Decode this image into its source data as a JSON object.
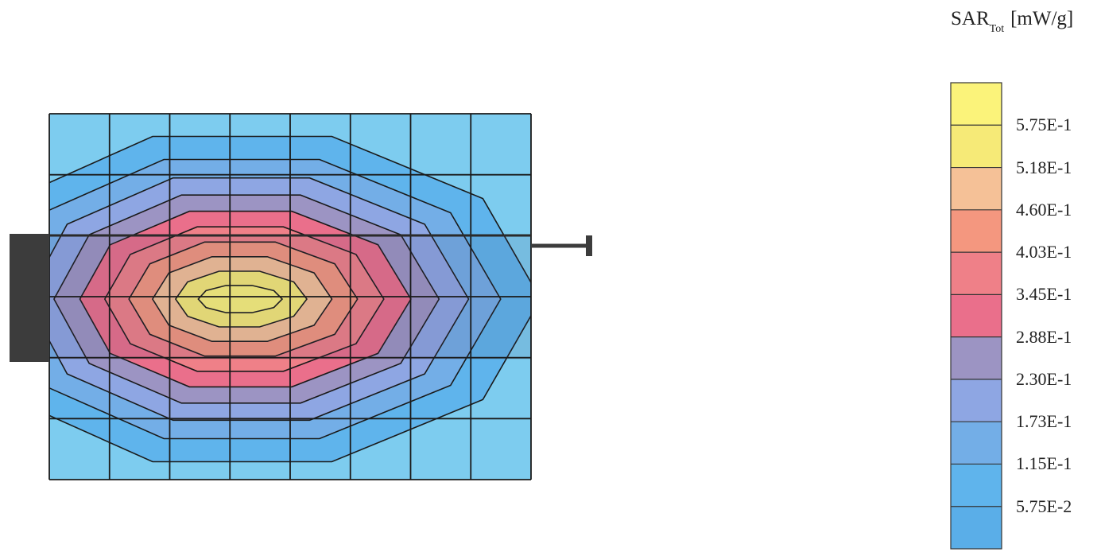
{
  "chart_data": {
    "type": "heatmap",
    "title": "",
    "colorbar_title": {
      "main": "SAR",
      "sub": "Tot",
      "unit": "[mW/g]"
    },
    "colorbar_labels": [
      "5.75E-1",
      "5.18E-1",
      "4.60E-1",
      "4.03E-1",
      "3.45E-1",
      "2.88E-1",
      "2.30E-1",
      "1.73E-1",
      "1.15E-1",
      "5.75E-2"
    ],
    "colorbar_colors": [
      "#fbf37a",
      "#f6ea77",
      "#f5c197",
      "#f4977f",
      "#ef8088",
      "#ea6f8b",
      "#9c94c3",
      "#8ea6e3",
      "#73aee7",
      "#5fb4ec",
      "#5aaee8"
    ],
    "contour_levels": [
      0.0575,
      0.115,
      0.173,
      0.23,
      0.288,
      0.345,
      0.403,
      0.46,
      0.518,
      0.575
    ],
    "grid": {
      "columns": 8,
      "rows": 6,
      "visible": true
    },
    "background_color": "#7dccef",
    "device_color": "#3c3c3c"
  }
}
